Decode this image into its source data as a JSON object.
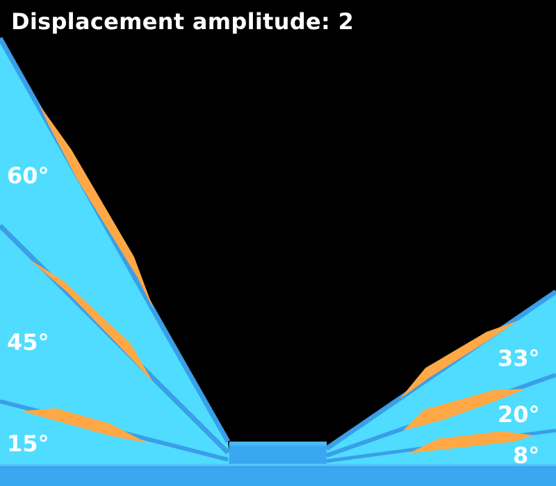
{
  "title": "Displacement amplitude: 2",
  "colors": {
    "background": "#000000",
    "ramp_face": "#4fdcff",
    "ramp_edge": "#3a9ee8",
    "floor": "#3aa8f0",
    "decal": "#ffa845",
    "text": "#ffffff"
  },
  "ramps": [
    {
      "side": "left",
      "angle_label": "60°"
    },
    {
      "side": "left",
      "angle_label": "45°"
    },
    {
      "side": "left",
      "angle_label": "15°"
    },
    {
      "side": "right",
      "angle_label": "33°"
    },
    {
      "side": "right",
      "angle_label": "20°"
    },
    {
      "side": "right",
      "angle_label": "8°"
    }
  ]
}
